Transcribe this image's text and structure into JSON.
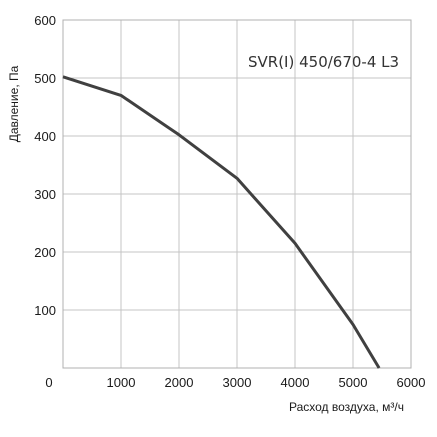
{
  "chart_data": {
    "type": "line",
    "title": "SVR(I) 450/670-4 L3",
    "xlabel": "Расход воздуха, м³/ч",
    "ylabel": "Давление, Па",
    "xlim": [
      0,
      6000
    ],
    "ylim": [
      0,
      600
    ],
    "x_ticks": [
      "0",
      "1000",
      "2000",
      "3000",
      "4000",
      "5000",
      "6000"
    ],
    "y_ticks": [
      "100",
      "200",
      "300",
      "400",
      "500",
      "600"
    ],
    "grid": true,
    "series": [
      {
        "color": "#404040",
        "x": [
          0,
          1000,
          2000,
          3000,
          4000,
          5000,
          5450
        ],
        "y": [
          502,
          470,
          402,
          327,
          215,
          75,
          0
        ]
      }
    ]
  }
}
